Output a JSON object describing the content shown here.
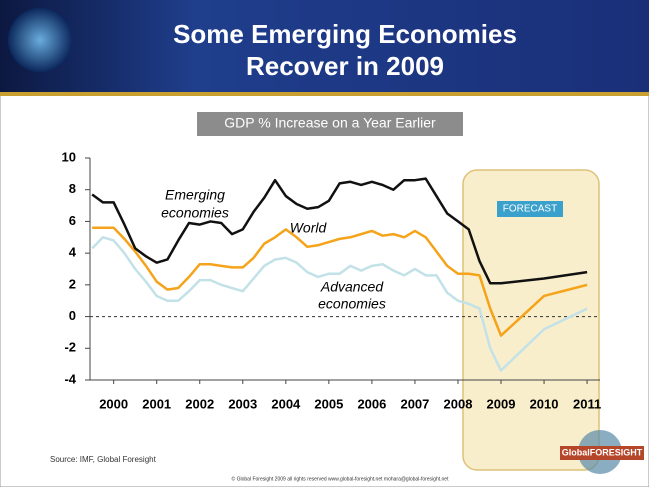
{
  "chart_data": {
    "type": "line",
    "title_lines": [
      "Some Emerging Economies",
      "Recover in 2009"
    ],
    "subtitle": "GDP % Increase on a Year Earlier",
    "annotations": [
      "Emerging",
      "economies",
      "World",
      "Advanced",
      "economies",
      "FORECAST"
    ],
    "source": "Source: IMF, Global Foresight",
    "footer": "© Global Foresight 2009 all rights reserved  www.global-foresight.net  mohara@global-foresight.net",
    "logo": "GlobalFORESIGHT",
    "x": [
      1999.5,
      1999.75,
      2000,
      2000.25,
      2000.5,
      2000.75,
      2001,
      2001.25,
      2001.5,
      2001.75,
      2002,
      2002.25,
      2002.5,
      2002.75,
      2003,
      2003.25,
      2003.5,
      2003.75,
      2004,
      2004.25,
      2004.5,
      2004.75,
      2005,
      2005.25,
      2005.5,
      2005.75,
      2006,
      2006.25,
      2006.5,
      2006.75,
      2007,
      2007.25,
      2007.5,
      2007.75,
      2008,
      2008.25,
      2008.5,
      2008.75,
      2009,
      2010,
      2011
    ],
    "series": [
      {
        "name": "Emerging economies",
        "color": "#111111",
        "values": [
          7.7,
          7.2,
          7.2,
          5.8,
          4.3,
          3.8,
          3.4,
          3.6,
          4.8,
          5.9,
          5.8,
          6.0,
          5.9,
          5.2,
          5.5,
          6.6,
          7.5,
          8.6,
          7.6,
          7.1,
          6.8,
          6.9,
          7.3,
          8.4,
          8.5,
          8.3,
          8.5,
          8.3,
          8.0,
          8.6,
          8.6,
          8.7,
          7.6,
          6.5,
          6.0,
          5.5,
          3.5,
          2.1,
          2.1,
          2.4,
          2.8
        ]
      },
      {
        "name": "World",
        "color": "#f5a31a",
        "values": [
          5.6,
          5.6,
          5.6,
          4.9,
          4.1,
          3.2,
          2.2,
          1.7,
          1.8,
          2.5,
          3.3,
          3.3,
          3.2,
          3.1,
          3.1,
          3.7,
          4.6,
          5.0,
          5.5,
          5.0,
          4.4,
          4.5,
          4.7,
          4.9,
          5.0,
          5.2,
          5.4,
          5.1,
          5.2,
          5.0,
          5.4,
          5.0,
          4.1,
          3.2,
          2.7,
          2.7,
          2.6,
          0.5,
          -1.2,
          1.3,
          2.0
        ]
      },
      {
        "name": "Advanced economies",
        "color": "#c2e2e8",
        "values": [
          4.3,
          5.0,
          4.8,
          4.0,
          3.0,
          2.2,
          1.3,
          1.0,
          1.0,
          1.6,
          2.3,
          2.3,
          2.0,
          1.8,
          1.6,
          2.4,
          3.2,
          3.6,
          3.7,
          3.4,
          2.8,
          2.5,
          2.7,
          2.7,
          3.2,
          2.9,
          3.2,
          3.3,
          2.9,
          2.6,
          3.0,
          2.6,
          2.6,
          1.5,
          1.0,
          0.8,
          0.5,
          -2.0,
          -3.4,
          -0.8,
          0.5
        ]
      }
    ],
    "xlim": [
      1999.45,
      2011.3
    ],
    "xticks": [
      2000,
      2001,
      2002,
      2003,
      2004,
      2005,
      2006,
      2007,
      2008,
      2009,
      2010,
      2011
    ],
    "ylim": [
      -4,
      10
    ],
    "yticks": [
      -4,
      -2,
      0,
      2,
      4,
      6,
      8,
      10
    ]
  }
}
